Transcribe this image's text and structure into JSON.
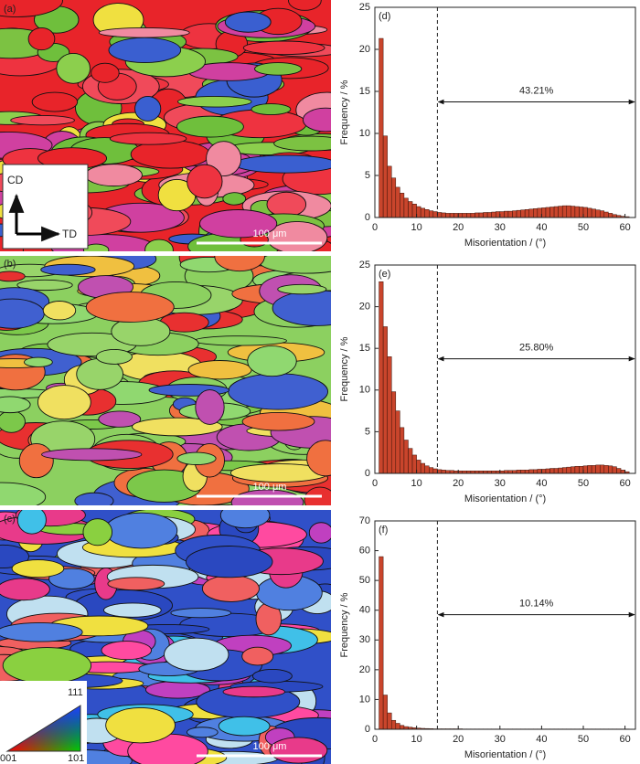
{
  "panels": [
    {
      "label": "(a)",
      "scale_bar": "100 μm"
    },
    {
      "label": "(b)",
      "scale_bar": "100 μm"
    },
    {
      "label": "(c)",
      "scale_bar": "100 μm"
    }
  ],
  "axes_key": {
    "y": "CD",
    "x": "TD"
  },
  "ipf_key": {
    "top": "111",
    "left": "001",
    "right": "101"
  },
  "chart_data": [
    {
      "type": "histogram",
      "title": "(d)",
      "color": "#c9452c",
      "bins": [
        1,
        2,
        3,
        4,
        5,
        6,
        7,
        8,
        9,
        10,
        11,
        12,
        13,
        14,
        15,
        16,
        17,
        18,
        19,
        20,
        21,
        22,
        23,
        24,
        25,
        26,
        27,
        28,
        29,
        30,
        31,
        32,
        33,
        34,
        35,
        36,
        37,
        38,
        39,
        40,
        41,
        42,
        43,
        44,
        45,
        46,
        47,
        48,
        49,
        50,
        51,
        52,
        53,
        54,
        55,
        56,
        57,
        58,
        59,
        60,
        61
      ],
      "values": [
        21.3,
        9.7,
        6.1,
        4.7,
        3.6,
        2.9,
        2.3,
        1.9,
        1.6,
        1.3,
        1.1,
        0.95,
        0.8,
        0.7,
        0.6,
        0.55,
        0.5,
        0.5,
        0.5,
        0.5,
        0.5,
        0.5,
        0.5,
        0.55,
        0.55,
        0.6,
        0.6,
        0.65,
        0.7,
        0.7,
        0.75,
        0.75,
        0.8,
        0.85,
        0.9,
        0.95,
        1.0,
        1.05,
        1.1,
        1.15,
        1.2,
        1.25,
        1.3,
        1.35,
        1.4,
        1.4,
        1.35,
        1.3,
        1.25,
        1.2,
        1.1,
        1.0,
        0.9,
        0.8,
        0.65,
        0.5,
        0.35,
        0.25,
        0.15,
        0.1
      ],
      "xlim": [
        0,
        62.5
      ],
      "xticks": [
        0,
        10,
        20,
        30,
        40,
        50,
        60
      ],
      "ylim": [
        0,
        25
      ],
      "yticks": [
        0,
        5,
        10,
        15,
        20,
        25
      ],
      "xlabel": "Misorientation / (°)",
      "ylabel": "Frequency / %",
      "threshold": 15,
      "annotation": "43.21%"
    },
    {
      "type": "histogram",
      "title": "(e)",
      "color": "#c9452c",
      "bins": [
        1,
        2,
        3,
        4,
        5,
        6,
        7,
        8,
        9,
        10,
        11,
        12,
        13,
        14,
        15,
        16,
        17,
        18,
        19,
        20,
        21,
        22,
        23,
        24,
        25,
        26,
        27,
        28,
        29,
        30,
        31,
        32,
        33,
        34,
        35,
        36,
        37,
        38,
        39,
        40,
        41,
        42,
        43,
        44,
        45,
        46,
        47,
        48,
        49,
        50,
        51,
        52,
        53,
        54,
        55,
        56,
        57,
        58,
        59,
        60,
        61
      ],
      "values": [
        23.0,
        17.6,
        14.0,
        9.8,
        7.5,
        5.5,
        4.0,
        3.0,
        2.2,
        1.6,
        1.2,
        0.9,
        0.7,
        0.55,
        0.45,
        0.4,
        0.35,
        0.35,
        0.3,
        0.3,
        0.3,
        0.3,
        0.3,
        0.3,
        0.3,
        0.3,
        0.3,
        0.3,
        0.3,
        0.3,
        0.35,
        0.35,
        0.35,
        0.4,
        0.4,
        0.4,
        0.45,
        0.45,
        0.5,
        0.5,
        0.55,
        0.6,
        0.6,
        0.65,
        0.7,
        0.75,
        0.8,
        0.85,
        0.85,
        0.9,
        0.95,
        0.95,
        1.0,
        1.0,
        0.95,
        0.9,
        0.8,
        0.6,
        0.4,
        0.2
      ],
      "xlim": [
        0,
        62.5
      ],
      "xticks": [
        0,
        10,
        20,
        30,
        40,
        50,
        60
      ],
      "ylim": [
        0,
        25
      ],
      "yticks": [
        0,
        5,
        10,
        15,
        20,
        25
      ],
      "xlabel": "Misorientation / (°)",
      "ylabel": "Frequency / %",
      "threshold": 15,
      "annotation": "25.80%"
    },
    {
      "type": "histogram",
      "title": "(f)",
      "color": "#c9452c",
      "bins": [
        1,
        2,
        3,
        4,
        5,
        6,
        7,
        8,
        9,
        10,
        11,
        12,
        13,
        14,
        15,
        16,
        17,
        18,
        19,
        20,
        21,
        22,
        23,
        24,
        25,
        26,
        27,
        28,
        29,
        30,
        31,
        32,
        33,
        34,
        35,
        36,
        37,
        38,
        39,
        40,
        41,
        42,
        43,
        44,
        45,
        46,
        47,
        48,
        49,
        50,
        51,
        52,
        53,
        54,
        55,
        56,
        57,
        58,
        59,
        60,
        61
      ],
      "values": [
        58,
        11.5,
        5.5,
        3.0,
        2.0,
        1.3,
        0.9,
        0.7,
        0.5,
        0.4,
        0.3,
        0.25,
        0.2,
        0.15,
        0.15,
        0.15,
        0.15,
        0.15,
        0.15,
        0.15,
        0.1,
        0.1,
        0.1,
        0.1,
        0.1,
        0.1,
        0.1,
        0.1,
        0.1,
        0.1,
        0.1,
        0.1,
        0.1,
        0.1,
        0.1,
        0.1,
        0.1,
        0.1,
        0.1,
        0.1,
        0.1,
        0.1,
        0.1,
        0.1,
        0.1,
        0.1,
        0.1,
        0.1,
        0.1,
        0.1,
        0.1,
        0.1,
        0.1,
        0.1,
        0.1,
        0.1,
        0.1,
        0.1,
        0.1,
        0.1
      ],
      "xlim": [
        0,
        62.5
      ],
      "xticks": [
        0,
        10,
        20,
        30,
        40,
        50,
        60
      ],
      "ylim": [
        0,
        70
      ],
      "yticks": [
        0,
        10,
        20,
        30,
        40,
        50,
        60,
        70
      ],
      "xlabel": "Misorientation / (°)",
      "ylabel": "Frequency / %",
      "threshold": 15,
      "annotation": "10.14%"
    }
  ]
}
